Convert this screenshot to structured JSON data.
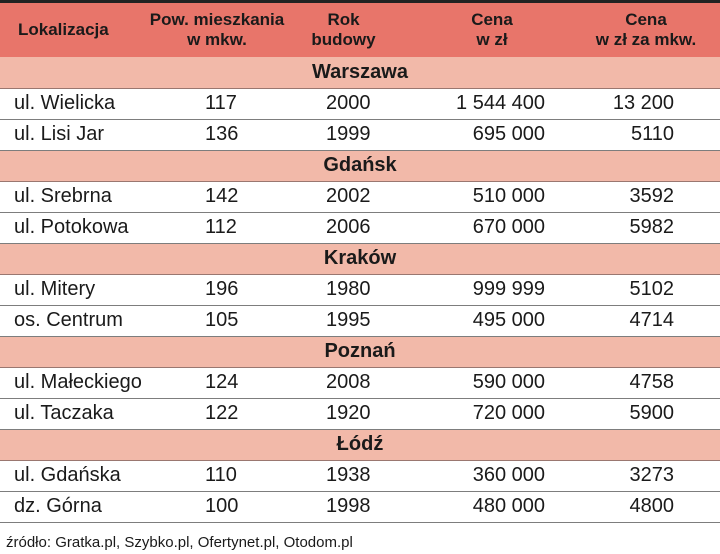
{
  "table": {
    "headers": {
      "col1": [
        "Lokalizacja"
      ],
      "col2": [
        "Pow. mieszkania",
        "w mkw."
      ],
      "col3": [
        "Rok",
        "budowy"
      ],
      "col4": [
        "Cena",
        "w zł"
      ],
      "col5": [
        "Cena",
        "w zł za mkw."
      ]
    },
    "groups": [
      {
        "city": "Warszawa",
        "rows": [
          {
            "location": "ul. Wielicka",
            "area": "117",
            "year": "2000",
            "price": "1 544 400",
            "price_per_sqm": "13 200"
          },
          {
            "location": "ul. Lisi Jar",
            "area": "136",
            "year": "1999",
            "price": "695 000",
            "price_per_sqm": "5110"
          }
        ]
      },
      {
        "city": "Gdańsk",
        "rows": [
          {
            "location": "ul. Srebrna",
            "area": "142",
            "year": "2002",
            "price": "510 000",
            "price_per_sqm": "3592"
          },
          {
            "location": "ul. Potokowa",
            "area": "112",
            "year": "2006",
            "price": "670 000",
            "price_per_sqm": "5982"
          }
        ]
      },
      {
        "city": "Kraków",
        "rows": [
          {
            "location": "ul. Mitery",
            "area": "196",
            "year": "1980",
            "price": "999 999",
            "price_per_sqm": "5102"
          },
          {
            "location": "os. Centrum",
            "area": "105",
            "year": "1995",
            "price": "495 000",
            "price_per_sqm": "4714"
          }
        ]
      },
      {
        "city": "Poznań",
        "rows": [
          {
            "location": "ul. Małeckiego",
            "area": "124",
            "year": "2008",
            "price": "590 000",
            "price_per_sqm": "4758"
          },
          {
            "location": "ul. Taczaka",
            "area": "122",
            "year": "1920",
            "price": "720 000",
            "price_per_sqm": "5900"
          }
        ]
      },
      {
        "city": "Łódź",
        "rows": [
          {
            "location": "ul. Gdańska",
            "area": "110",
            "year": "1938",
            "price": "360 000",
            "price_per_sqm": "3273"
          },
          {
            "location": "dz. Górna",
            "area": "100",
            "year": "1998",
            "price": "480 000",
            "price_per_sqm": "4800"
          }
        ]
      }
    ]
  },
  "source": "źródło: Gratka.pl, Szybko.pl, Ofertynet.pl, Otodom.pl",
  "colors": {
    "header_bg": "#e8756a",
    "city_bg": "#f2b9a9"
  }
}
